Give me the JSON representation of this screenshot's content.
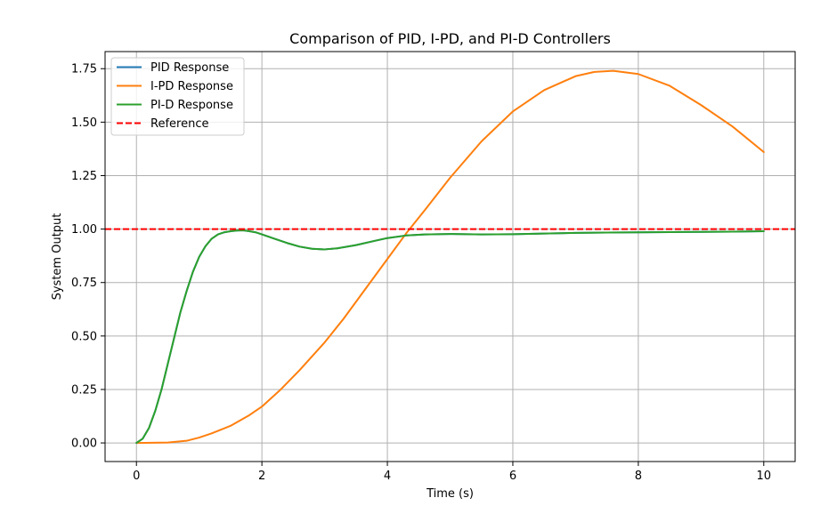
{
  "chart_data": {
    "type": "line",
    "title": "Comparison of PID, I-PD, and PI-D Controllers",
    "xlabel": "Time (s)",
    "ylabel": "System Output",
    "xlim": [
      -0.5,
      10.5
    ],
    "ylim": [
      -0.087,
      1.83
    ],
    "xticks": [
      0,
      2,
      4,
      6,
      8,
      10
    ],
    "yticks": [
      0.0,
      0.25,
      0.5,
      0.75,
      1.0,
      1.25,
      1.5,
      1.75
    ],
    "xtick_labels": [
      "0",
      "2",
      "4",
      "6",
      "8",
      "10"
    ],
    "ytick_labels": [
      "0.00",
      "0.25",
      "0.50",
      "0.75",
      "1.00",
      "1.25",
      "1.50",
      "1.75"
    ],
    "grid": true,
    "legend_position": "top-left",
    "series": [
      {
        "name": "PID Response",
        "color": "#1f77b4",
        "style": "solid",
        "x": [
          0,
          0.1,
          0.2,
          0.3,
          0.4,
          0.5,
          0.6,
          0.7,
          0.8,
          0.9,
          1.0,
          1.1,
          1.2,
          1.3,
          1.4,
          1.5,
          1.6,
          1.7,
          1.8,
          1.9,
          2.0,
          2.2,
          2.4,
          2.6,
          2.8,
          3.0,
          3.2,
          3.5,
          3.8,
          4.0,
          4.3,
          4.6,
          5.0,
          5.5,
          6.0,
          6.5,
          7.0,
          7.5,
          8.0,
          8.5,
          9.0,
          9.5,
          10.0
        ],
        "y": [
          0.0,
          0.02,
          0.07,
          0.15,
          0.25,
          0.37,
          0.49,
          0.61,
          0.71,
          0.8,
          0.87,
          0.92,
          0.955,
          0.975,
          0.985,
          0.99,
          0.993,
          0.994,
          0.99,
          0.985,
          0.975,
          0.955,
          0.935,
          0.918,
          0.908,
          0.905,
          0.91,
          0.925,
          0.945,
          0.958,
          0.97,
          0.975,
          0.977,
          0.975,
          0.976,
          0.979,
          0.982,
          0.984,
          0.985,
          0.986,
          0.987,
          0.988,
          0.99
        ]
      },
      {
        "name": "I-PD Response",
        "color": "#ff7f0e",
        "style": "solid",
        "x": [
          0,
          0.5,
          0.8,
          1.0,
          1.2,
          1.5,
          1.8,
          2.0,
          2.3,
          2.6,
          3.0,
          3.3,
          3.6,
          4.0,
          4.3,
          4.6,
          5.0,
          5.5,
          6.0,
          6.5,
          7.0,
          7.3,
          7.6,
          8.0,
          8.5,
          9.0,
          9.5,
          10.0
        ],
        "y": [
          0.0,
          0.002,
          0.01,
          0.025,
          0.045,
          0.08,
          0.13,
          0.17,
          0.25,
          0.34,
          0.47,
          0.58,
          0.7,
          0.86,
          0.98,
          1.09,
          1.24,
          1.41,
          1.55,
          1.65,
          1.715,
          1.735,
          1.74,
          1.725,
          1.67,
          1.58,
          1.48,
          1.36
        ]
      },
      {
        "name": "PI-D Response",
        "color": "#2ca02c",
        "style": "solid",
        "x": [
          0,
          0.1,
          0.2,
          0.3,
          0.4,
          0.5,
          0.6,
          0.7,
          0.8,
          0.9,
          1.0,
          1.1,
          1.2,
          1.3,
          1.4,
          1.5,
          1.6,
          1.7,
          1.8,
          1.9,
          2.0,
          2.2,
          2.4,
          2.6,
          2.8,
          3.0,
          3.2,
          3.5,
          3.8,
          4.0,
          4.3,
          4.6,
          5.0,
          5.5,
          6.0,
          6.5,
          7.0,
          7.5,
          8.0,
          8.5,
          9.0,
          9.5,
          10.0
        ],
        "y": [
          0.0,
          0.02,
          0.07,
          0.15,
          0.25,
          0.37,
          0.49,
          0.61,
          0.71,
          0.8,
          0.87,
          0.92,
          0.955,
          0.975,
          0.985,
          0.99,
          0.993,
          0.994,
          0.99,
          0.985,
          0.975,
          0.955,
          0.935,
          0.918,
          0.908,
          0.905,
          0.91,
          0.925,
          0.945,
          0.958,
          0.97,
          0.975,
          0.977,
          0.975,
          0.976,
          0.979,
          0.982,
          0.984,
          0.985,
          0.986,
          0.987,
          0.988,
          0.99
        ]
      }
    ],
    "reference": {
      "name": "Reference",
      "value": 1.0,
      "color": "#ff0000",
      "style": "dashed"
    }
  }
}
